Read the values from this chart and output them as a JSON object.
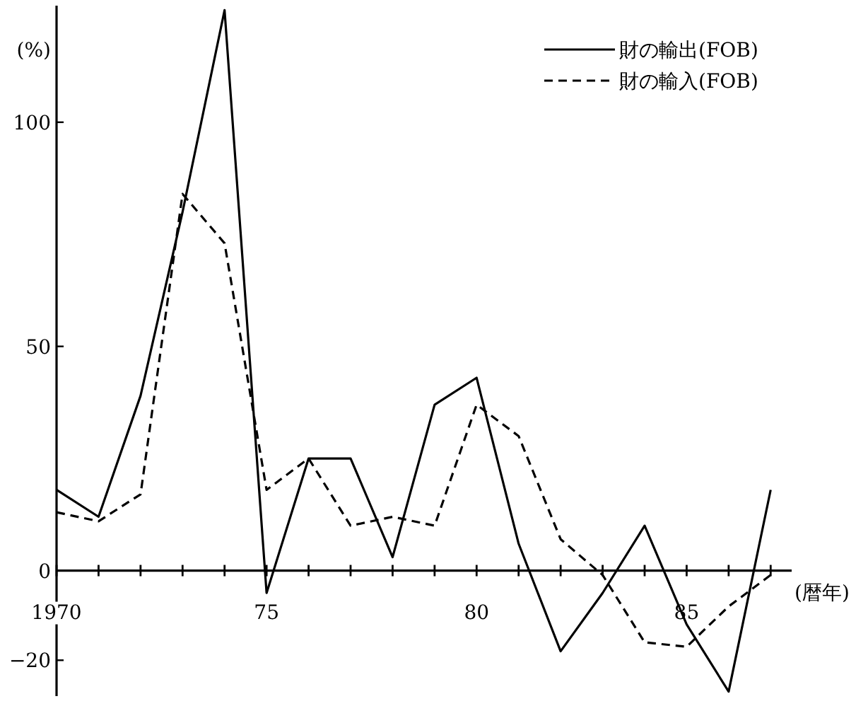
{
  "chart_data": {
    "type": "line",
    "ylabel": "(%)",
    "xlabel": "(暦年)",
    "legend": "top right",
    "grid": false,
    "marker": "none",
    "x": [
      1970,
      1971,
      1972,
      1973,
      1974,
      1975,
      1976,
      1977,
      1978,
      1979,
      1980,
      1981,
      1982,
      1983,
      1984,
      1985,
      1986,
      1987
    ],
    "series": [
      {
        "name": "財の輸出(FOB)",
        "color": "#000000",
        "line_style": "solid",
        "values": [
          18,
          12,
          39,
          80,
          125,
          -5,
          25,
          25,
          3,
          37,
          43,
          6,
          -18,
          -5,
          10,
          -12,
          -27,
          18
        ]
      },
      {
        "name": "財の輸入(FOB)",
        "color": "#000000",
        "line_style": "dashed",
        "values": [
          13,
          11,
          17,
          84,
          73,
          18,
          25,
          10,
          12,
          10,
          37,
          30,
          7,
          -1,
          -16,
          -17,
          -8,
          -1
        ]
      }
    ],
    "xlim": [
      1970,
      1987.5
    ],
    "ylim": [
      -28,
      126
    ],
    "xticks": [
      {
        "value": 1970,
        "label": "1970"
      },
      {
        "value": 1971,
        "label": null
      },
      {
        "value": 1972,
        "label": null
      },
      {
        "value": 1973,
        "label": null
      },
      {
        "value": 1974,
        "label": null
      },
      {
        "value": 1975,
        "label": "75"
      },
      {
        "value": 1976,
        "label": null
      },
      {
        "value": 1977,
        "label": null
      },
      {
        "value": 1978,
        "label": null
      },
      {
        "value": 1979,
        "label": null
      },
      {
        "value": 1980,
        "label": "80"
      },
      {
        "value": 1981,
        "label": null
      },
      {
        "value": 1982,
        "label": null
      },
      {
        "value": 1983,
        "label": null
      },
      {
        "value": 1984,
        "label": null
      },
      {
        "value": 1985,
        "label": "85"
      },
      {
        "value": 1986,
        "label": null
      },
      {
        "value": 1987,
        "label": null
      }
    ],
    "yticks": [
      -20,
      0,
      50,
      100
    ]
  }
}
